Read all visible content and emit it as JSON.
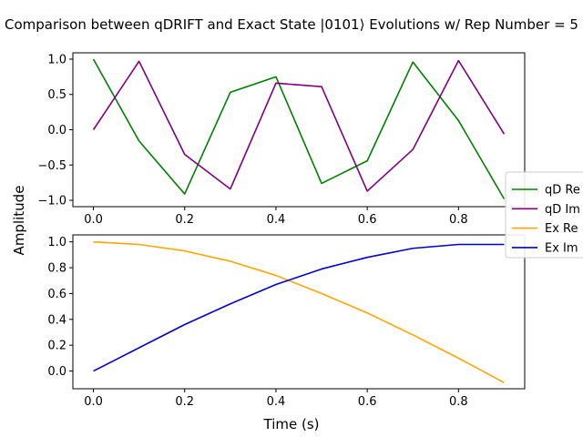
{
  "figure": {
    "title": "Comparison between qDRIFT and Exact State |0101⟩ Evolutions w/ Rep Number = 5",
    "shared_ylabel": "Amplitude",
    "shared_xlabel": "Time (s)"
  },
  "legend": {
    "placement": "right",
    "entries": [
      {
        "label": "qD Re",
        "color": "#008000"
      },
      {
        "label": "qD Im",
        "color": "#800080"
      },
      {
        "label": "Ex Re",
        "color": "#ffa500"
      },
      {
        "label": "Ex Im",
        "color": "#0000cd"
      }
    ]
  },
  "chart_data": [
    {
      "type": "line",
      "x": [
        0.0,
        0.1,
        0.2,
        0.3,
        0.4,
        0.5,
        0.6,
        0.7,
        0.8,
        0.9
      ],
      "xlim": [
        -0.045,
        0.945
      ],
      "ylim": [
        -1.09,
        1.09
      ],
      "xticks": [
        "0.0",
        "0.2",
        "0.4",
        "0.6",
        "0.8"
      ],
      "xtick_values": [
        0.0,
        0.2,
        0.4,
        0.6,
        0.8
      ],
      "yticks": [
        "−1.0",
        "−0.5",
        "0.0",
        "0.5",
        "1.0"
      ],
      "ytick_values": [
        -1.0,
        -0.5,
        0.0,
        0.5,
        1.0
      ],
      "grid": false,
      "series": [
        {
          "name": "qD Re",
          "color": "#008000",
          "values": [
            1.0,
            -0.16,
            -0.91,
            0.53,
            0.75,
            -0.76,
            -0.44,
            0.96,
            0.13,
            -0.98
          ]
        },
        {
          "name": "qD Im",
          "color": "#800080",
          "values": [
            0.0,
            0.97,
            -0.35,
            -0.84,
            0.66,
            0.61,
            -0.87,
            -0.28,
            0.98,
            -0.06
          ]
        }
      ]
    },
    {
      "type": "line",
      "x": [
        0.0,
        0.1,
        0.2,
        0.3,
        0.4,
        0.5,
        0.6,
        0.7,
        0.8,
        0.9
      ],
      "xlim": [
        -0.045,
        0.945
      ],
      "ylim": [
        -0.137,
        1.054
      ],
      "xticks": [
        "0.0",
        "0.2",
        "0.4",
        "0.6",
        "0.8"
      ],
      "xtick_values": [
        0.0,
        0.2,
        0.4,
        0.6,
        0.8
      ],
      "yticks": [
        "0.0",
        "0.2",
        "0.4",
        "0.6",
        "0.8",
        "1.0"
      ],
      "ytick_values": [
        0.0,
        0.2,
        0.4,
        0.6,
        0.8,
        1.0
      ],
      "grid": false,
      "series": [
        {
          "name": "Ex Re",
          "color": "#ffa500",
          "values": [
            1.0,
            0.98,
            0.93,
            0.85,
            0.74,
            0.6,
            0.45,
            0.28,
            0.1,
            -0.09
          ]
        },
        {
          "name": "Ex Im",
          "color": "#0000cd",
          "values": [
            0.0,
            0.18,
            0.36,
            0.52,
            0.67,
            0.79,
            0.88,
            0.95,
            0.98,
            0.98
          ]
        }
      ]
    }
  ]
}
